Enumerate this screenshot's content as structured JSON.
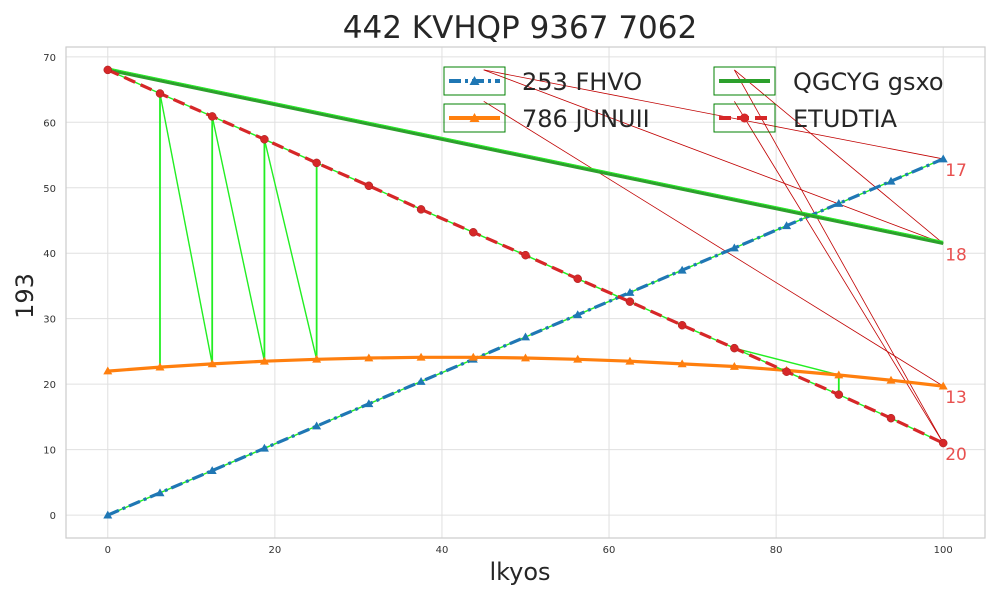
{
  "chart_data": {
    "type": "line",
    "title": "442 KVHQP 9367 7062",
    "xlabel": "lkyos",
    "ylabel": "193",
    "xlim": [
      -5,
      105
    ],
    "ylim": [
      -3.5,
      71.5
    ],
    "xticks": [
      0,
      20,
      40,
      60,
      80,
      100
    ],
    "yticks": [
      0,
      10,
      20,
      30,
      40,
      50,
      60,
      70
    ],
    "grid": true,
    "legend_position": "top-right",
    "legend_columns": 2,
    "series": [
      {
        "name": "253 FHVO",
        "color": "#1f77b4",
        "marker": "triangle",
        "line_style": "dashdot",
        "x": [
          0,
          6.25,
          12.5,
          18.75,
          25,
          31.25,
          37.5,
          43.75,
          50,
          56.25,
          62.5,
          68.75,
          75,
          81.25,
          87.5,
          93.75,
          100
        ],
        "y": [
          0,
          3.4,
          6.8,
          10.2,
          13.6,
          17.0,
          20.4,
          23.8,
          27.2,
          30.6,
          34.0,
          37.4,
          40.8,
          44.2,
          47.6,
          51.0,
          54.4
        ],
        "end_label": "17"
      },
      {
        "name": "786 JUNUII",
        "color": "#ff7f0e",
        "marker": "triangle",
        "line_style": "solid",
        "x": [
          0,
          6.25,
          12.5,
          18.75,
          25,
          31.25,
          37.5,
          43.75,
          50,
          56.25,
          62.5,
          68.75,
          75,
          81.25,
          87.5,
          93.75,
          100
        ],
        "y": [
          22.0,
          22.6,
          23.1,
          23.5,
          23.8,
          24.0,
          24.1,
          24.1,
          24.0,
          23.8,
          23.5,
          23.1,
          22.7,
          22.1,
          21.4,
          20.6,
          19.7
        ],
        "end_label": "13"
      },
      {
        "name": "QGCYG gsxo",
        "color": "#2ca02c",
        "marker": "none",
        "line_style": "solid",
        "x": [
          0,
          100
        ],
        "y": [
          68.0,
          41.5
        ],
        "end_label": "18"
      },
      {
        "name": "ETUDTIA",
        "color": "#d62728",
        "marker": "circle",
        "line_style": "dashed",
        "x": [
          0,
          6.25,
          12.5,
          18.75,
          25,
          31.25,
          37.5,
          43.75,
          50,
          56.25,
          62.5,
          68.75,
          75,
          81.25,
          87.5,
          93.75,
          100
        ],
        "y": [
          68.0,
          64.4,
          60.9,
          57.4,
          53.8,
          50.3,
          46.7,
          43.2,
          39.7,
          36.1,
          32.6,
          29.0,
          25.5,
          21.9,
          18.4,
          14.8,
          11.0
        ],
        "end_label": "20"
      }
    ],
    "annotations": {
      "green_connectors": [
        {
          "x": 6.25,
          "y_top": 64.4,
          "y_bottom": 22.6
        },
        {
          "x": 12.5,
          "y_top": 60.9,
          "y_bottom": 23.1
        },
        {
          "x": 18.75,
          "y_top": 57.4,
          "y_bottom": 23.5
        },
        {
          "x": 25,
          "y_top": 53.8,
          "y_bottom": 23.8
        },
        {
          "x": 87.5,
          "y_top": 21.4,
          "y_bottom": 18.4
        }
      ],
      "green_diagonals": [
        [
          [
            6.25,
            64.4
          ],
          [
            12.5,
            23.1
          ]
        ],
        [
          [
            12.5,
            60.9
          ],
          [
            18.75,
            23.5
          ]
        ],
        [
          [
            18.75,
            57.4
          ],
          [
            25,
            23.8
          ]
        ],
        [
          [
            75,
            25.5
          ],
          [
            87.5,
            21.4
          ]
        ]
      ],
      "red_thin_lines": [
        [
          [
            45,
            68.0
          ],
          [
            100,
            54.4
          ]
        ],
        [
          [
            45,
            68.0
          ],
          [
            100,
            41.5
          ]
        ],
        [
          [
            45,
            63.2
          ],
          [
            100,
            19.7
          ]
        ],
        [
          [
            75,
            68.0
          ],
          [
            100,
            41.5
          ]
        ],
        [
          [
            75,
            68.0
          ],
          [
            100,
            11.0
          ]
        ],
        [
          [
            75,
            63.2
          ],
          [
            100,
            11.0
          ]
        ]
      ]
    }
  }
}
